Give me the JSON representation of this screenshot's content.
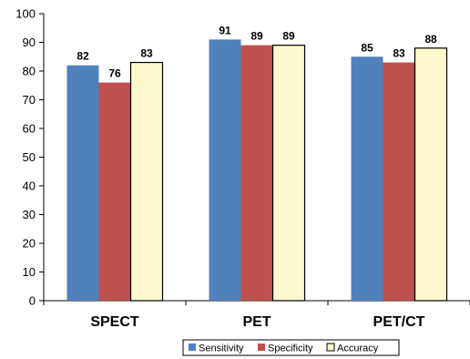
{
  "chart_data": {
    "type": "bar",
    "categories": [
      "SPECT",
      "PET",
      "PET/CT"
    ],
    "series": [
      {
        "name": "Sensitivity",
        "values": [
          82,
          91,
          85
        ],
        "color": "#4f81bd"
      },
      {
        "name": "Specificity",
        "values": [
          76,
          89,
          83
        ],
        "color": "#c0504d"
      },
      {
        "name": "Accuracy",
        "values": [
          83,
          89,
          88
        ],
        "color": "#fdf7cd"
      }
    ],
    "yticks": [
      "0",
      "10",
      "20",
      "30",
      "40",
      "50",
      "60",
      "70",
      "80",
      "90",
      "100"
    ],
    "ylim": [
      0,
      100
    ],
    "grid": false,
    "legend_position": "bottom",
    "data_labels": true,
    "title": "",
    "xlabel": "",
    "ylabel": ""
  }
}
